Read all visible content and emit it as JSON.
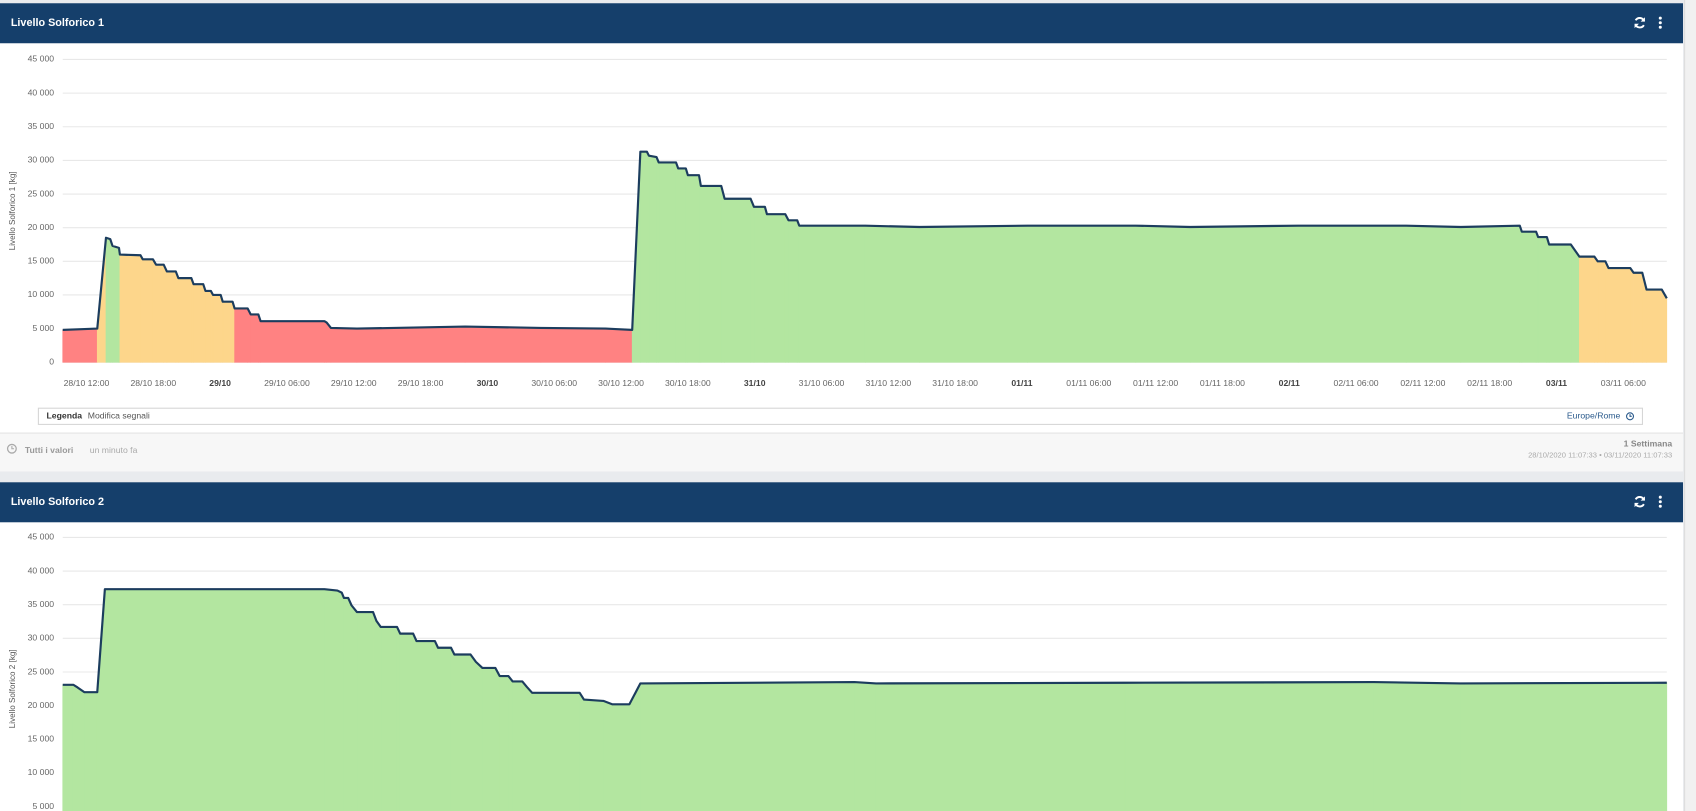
{
  "panels": [
    {
      "title": "Livello Solforico 1"
    },
    {
      "title": "Livello Solforico 2"
    }
  ],
  "footer": {
    "values_label": "Tutti i valori",
    "updated": "un minuto fa",
    "legend_label": "Legenda",
    "legend_link": "Modifica segnali",
    "timezone": "Europe/Rome",
    "range_label": "1 Settimana",
    "range_dates": "28/10/2020 11:07:33 • 03/11/2020 11:07:33"
  },
  "chart_data": [
    {
      "type": "area",
      "ylabel": "Livello Solforico 1 [kg]",
      "line_color": "#1c3d5e",
      "xlim": [
        "28/10 09:52",
        "03/11 09:54"
      ],
      "xticks": [
        "28/10 12:00",
        "28/10 18:00",
        "29/10",
        "29/10 06:00",
        "29/10 12:00",
        "29/10 18:00",
        "30/10",
        "30/10 06:00",
        "30/10 12:00",
        "30/10 18:00",
        "31/10",
        "31/10 06:00",
        "31/10 12:00",
        "31/10 18:00",
        "01/11",
        "01/11 06:00",
        "01/11 12:00",
        "01/11 18:00",
        "02/11",
        "02/11 06:00",
        "02/11 12:00",
        "02/11 18:00",
        "03/11",
        "03/11 06:00"
      ],
      "ylim": [
        0,
        45000
      ],
      "yticks": [
        0,
        {
          "value": 5000,
          "label": "5 000"
        },
        {
          "value": 10000,
          "label": "10 000"
        },
        {
          "value": 15000,
          "label": "15 000"
        },
        {
          "value": 20000,
          "label": "20 000"
        },
        {
          "value": 25000,
          "label": "25 000"
        },
        {
          "value": 30000,
          "label": "30 000"
        },
        {
          "value": 35000,
          "label": "35 000"
        },
        {
          "value": 40000,
          "label": "40 000"
        },
        {
          "value": 45000,
          "label": "45 000"
        }
      ],
      "grid": true,
      "x": [
        "28/10 09:52",
        "28/10 12:58",
        "28/10 13:45",
        "28/10 14:08",
        "28/10 14:20",
        "28/10 14:55",
        "28/10 15:00",
        "28/10 16:51",
        "28/10 17:03",
        "28/10 17:58",
        "28/10 18:15",
        "28/10 18:56",
        "28/10 19:13",
        "28/10 20:01",
        "28/10 20:15",
        "28/10 21:25",
        "28/10 21:37",
        "28/10 22:29",
        "28/10 22:41",
        "28/10 23:10",
        "28/10 23:22",
        "29/10 00:03",
        "29/10 00:14",
        "29/10 01:07",
        "29/10 01:18",
        "29/10 02:28",
        "29/10 02:45",
        "29/10 03:26",
        "29/10 03:38",
        "29/10 09:22",
        "29/10 09:34",
        "29/10 09:57",
        "29/10 12:17",
        "29/10 22:00",
        "30/10 04:48",
        "30/10 10:37",
        "30/10 13:00",
        "30/10 13:44",
        "30/10 14:19",
        "30/10 14:30",
        "30/10 15:11",
        "30/10 15:23",
        "30/10 16:56",
        "30/10 17:08",
        "30/10 17:49",
        "30/10 18:00",
        "30/10 19:00",
        "30/10 19:10",
        "30/10 21:00",
        "30/10 21:18",
        "30/10 23:38",
        "30/10 23:56",
        "31/10 00:55",
        "31/10 01:06",
        "31/10 02:45",
        "31/10 03:02",
        "31/10 03:49",
        "31/10 04:00",
        "31/10 09:56",
        "31/10 14:48",
        "01/11 00:30",
        "01/11 10:13",
        "01/11 15:06",
        "02/11 00:48",
        "02/11 10:30",
        "02/11 15:24",
        "02/11 20:42",
        "02/11 20:53",
        "02/11 22:10",
        "02/11 22:21",
        "02/11 23:08",
        "02/11 23:20",
        "03/11 01:17",
        "03/11 02:03",
        "03/11 03:24",
        "03/11 03:42",
        "03/11 04:23",
        "03/11 04:40",
        "03/11 06:37",
        "03/11 06:55",
        "03/11 07:42",
        "03/11 08:05",
        "03/11 09:27",
        "03/11 09:54"
      ],
      "values": [
        4800,
        5000,
        18500,
        18300,
        17300,
        17000,
        16000,
        15900,
        15300,
        15300,
        14500,
        14500,
        13500,
        13500,
        12500,
        12500,
        11600,
        11600,
        10600,
        10600,
        10000,
        10000,
        9000,
        9000,
        8000,
        8000,
        7100,
        7100,
        6100,
        6100,
        5900,
        5100,
        5000,
        5300,
        5100,
        5000,
        4800,
        31300,
        31300,
        30700,
        30500,
        29700,
        29700,
        28800,
        28800,
        27800,
        27800,
        26200,
        26200,
        24300,
        24300,
        23100,
        23100,
        22000,
        22000,
        21100,
        21100,
        20300,
        20300,
        20100,
        20300,
        20300,
        20100,
        20300,
        20300,
        20100,
        20300,
        19400,
        19400,
        18600,
        18600,
        17500,
        17500,
        15700,
        15700,
        15000,
        15000,
        14000,
        14000,
        13300,
        13300,
        10800,
        10800,
        9500
      ],
      "fill_colors": [
        "#ff8282",
        "#fdd68b",
        "#b3e6a0",
        "#b3e6a0",
        "#b3e6a0",
        "#b3e6a0",
        "#fdd68b",
        "#fdd68b",
        "#fdd68b",
        "#fdd68b",
        "#fdd68b",
        "#fdd68b",
        "#fdd68b",
        "#fdd68b",
        "#fdd68b",
        "#fdd68b",
        "#fdd68b",
        "#fdd68b",
        "#fdd68b",
        "#fdd68b",
        "#fdd68b",
        "#fdd68b",
        "#fdd68b",
        "#fdd68b",
        "#ff8282",
        "#ff8282",
        "#ff8282",
        "#ff8282",
        "#ff8282",
        "#ff8282",
        "#ff8282",
        "#ff8282",
        "#ff8282",
        "#ff8282",
        "#ff8282",
        "#ff8282",
        "#b3e6a0",
        "#b3e6a0",
        "#b3e6a0",
        "#b3e6a0",
        "#b3e6a0",
        "#b3e6a0",
        "#b3e6a0",
        "#b3e6a0",
        "#b3e6a0",
        "#b3e6a0",
        "#b3e6a0",
        "#b3e6a0",
        "#b3e6a0",
        "#b3e6a0",
        "#b3e6a0",
        "#b3e6a0",
        "#b3e6a0",
        "#b3e6a0",
        "#b3e6a0",
        "#b3e6a0",
        "#b3e6a0",
        "#b3e6a0",
        "#b3e6a0",
        "#b3e6a0",
        "#b3e6a0",
        "#b3e6a0",
        "#b3e6a0",
        "#b3e6a0",
        "#b3e6a0",
        "#b3e6a0",
        "#b3e6a0",
        "#b3e6a0",
        "#b3e6a0",
        "#b3e6a0",
        "#b3e6a0",
        "#b3e6a0",
        "#b3e6a0",
        "#fdd68b",
        "#fdd68b",
        "#fdd68b",
        "#fdd68b",
        "#fdd68b",
        "#fdd68b",
        "#fdd68b",
        "#fdd68b",
        "#fdd68b",
        "#fdd68b",
        "#fdd68b"
      ]
    },
    {
      "type": "area",
      "ylabel": "Livello Solforico 2 [kg]",
      "line_color": "#1c3d5e",
      "fill_color": "#b3e6a0",
      "xlim": [
        "28/10 09:52",
        "03/11 09:54"
      ],
      "ylim": [
        0,
        45000
      ],
      "yticks": [
        {
          "value": 5000,
          "label": "5 000"
        },
        {
          "value": 10000,
          "label": "10 000"
        },
        {
          "value": 15000,
          "label": "15 000"
        },
        {
          "value": 20000,
          "label": "20 000"
        },
        {
          "value": 25000,
          "label": "25 000"
        },
        {
          "value": 30000,
          "label": "30 000"
        },
        {
          "value": 35000,
          "label": "35 000"
        },
        {
          "value": 40000,
          "label": "40 000"
        },
        {
          "value": 45000,
          "label": "45 000"
        }
      ],
      "grid": true,
      "x": [
        "28/10 09:52",
        "28/10 10:49",
        "28/10 11:12",
        "28/10 11:48",
        "28/10 12:58",
        "28/10 13:39",
        "29/10 09:22",
        "29/10 10:32",
        "29/10 10:55",
        "29/10 11:07",
        "29/10 11:30",
        "29/10 11:48",
        "29/10 12:17",
        "29/10 13:44",
        "29/10 14:02",
        "29/10 14:25",
        "29/10 15:53",
        "29/10 16:10",
        "29/10 17:20",
        "29/10 17:38",
        "29/10 19:17",
        "29/10 19:34",
        "29/10 20:44",
        "29/10 21:02",
        "29/10 22:29",
        "29/10 22:58",
        "29/10 23:33",
        "30/10 00:43",
        "30/10 01:06",
        "30/10 01:53",
        "30/10 02:16",
        "30/10 03:08",
        "30/10 03:32",
        "30/10 04:01",
        "30/10 08:17",
        "30/10 08:40",
        "30/10 10:25",
        "30/10 11:12",
        "30/10 12:45",
        "30/10 13:44",
        "31/10 08:57",
        "31/10 10:54",
        "01/11 09:14",
        "02/11 07:35",
        "02/11 15:22",
        "03/11 09:54"
      ],
      "values": [
        23100,
        23100,
        22700,
        22000,
        22000,
        37300,
        37300,
        37100,
        36800,
        36000,
        36000,
        34900,
        33900,
        33900,
        32600,
        31700,
        31700,
        30700,
        30700,
        29600,
        29600,
        28600,
        28600,
        27600,
        27600,
        26500,
        25600,
        25600,
        24400,
        24400,
        23600,
        23600,
        22800,
        21900,
        21900,
        20900,
        20700,
        20200,
        20200,
        23300,
        23500,
        23300,
        23400,
        23500,
        23300,
        23400
      ]
    }
  ]
}
